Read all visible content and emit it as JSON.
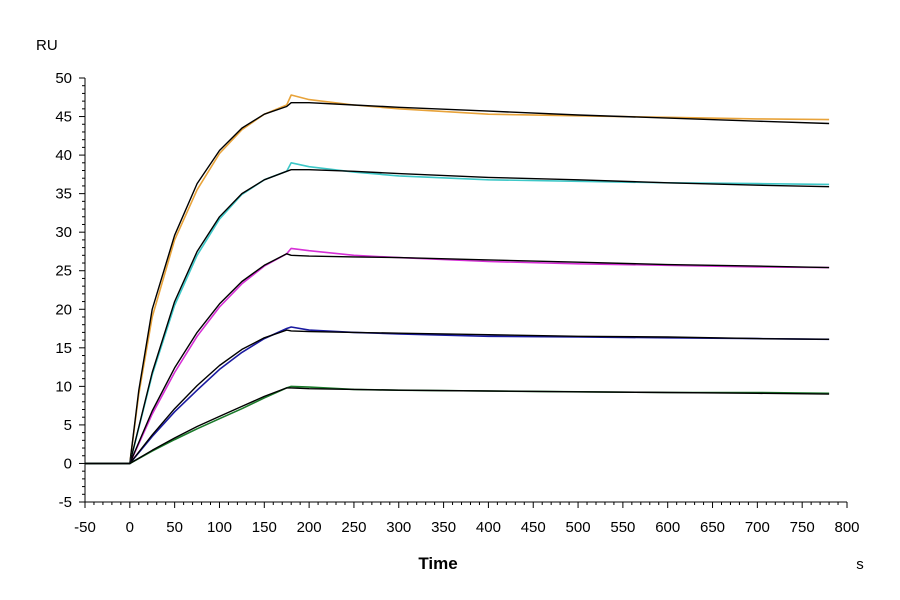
{
  "chart_data": {
    "type": "line",
    "title": "",
    "ylabel": "RU",
    "xlabel": "Time",
    "x_unit": "s",
    "xlim": [
      -50,
      800
    ],
    "ylim": [
      -5,
      50
    ],
    "x_ticks": [
      -50,
      0,
      50,
      100,
      150,
      200,
      250,
      300,
      350,
      400,
      450,
      500,
      550,
      600,
      650,
      700,
      750,
      800
    ],
    "y_ticks": [
      -5,
      0,
      5,
      10,
      15,
      20,
      25,
      30,
      35,
      40,
      45,
      50
    ],
    "grid": false,
    "legend": "none",
    "series": [
      {
        "color": "#e8a33a",
        "x": [
          -50,
          0,
          10,
          25,
          50,
          75,
          100,
          125,
          150,
          175,
          180,
          200,
          250,
          300,
          400,
          500,
          600,
          700,
          780
        ],
        "values": [
          0,
          0,
          9,
          19,
          29,
          35.5,
          40.2,
          43.3,
          45.3,
          46.5,
          47.8,
          47.2,
          46.5,
          46.0,
          45.3,
          45.1,
          44.9,
          44.7,
          44.6
        ]
      },
      {
        "color": "#000000",
        "x": [
          -50,
          0,
          10,
          25,
          50,
          75,
          100,
          125,
          150,
          175,
          180,
          200,
          250,
          300,
          400,
          500,
          600,
          700,
          780
        ],
        "values": [
          0,
          0,
          9.5,
          20,
          29.6,
          36.3,
          40.6,
          43.5,
          45.3,
          46.3,
          46.8,
          46.8,
          46.5,
          46.2,
          45.7,
          45.2,
          44.8,
          44.4,
          44.1
        ]
      },
      {
        "color": "#3ec8c8",
        "x": [
          -50,
          0,
          25,
          50,
          75,
          100,
          125,
          150,
          175,
          180,
          200,
          250,
          300,
          400,
          500,
          600,
          700,
          780
        ],
        "values": [
          0,
          0,
          11.5,
          20.5,
          27,
          31.7,
          34.9,
          36.8,
          37.9,
          39,
          38.5,
          37.8,
          37.3,
          36.8,
          36.6,
          36.4,
          36.3,
          36.2
        ]
      },
      {
        "color": "#000000",
        "x": [
          -50,
          0,
          25,
          50,
          75,
          100,
          125,
          150,
          175,
          180,
          200,
          250,
          300,
          400,
          500,
          600,
          700,
          780
        ],
        "values": [
          0,
          0,
          11.8,
          21,
          27.5,
          32,
          35,
          36.8,
          37.9,
          38.1,
          38.1,
          37.9,
          37.6,
          37.1,
          36.8,
          36.4,
          36.1,
          35.9
        ]
      },
      {
        "color": "#d630d6",
        "x": [
          -50,
          0,
          25,
          50,
          75,
          100,
          125,
          150,
          175,
          180,
          200,
          250,
          300,
          400,
          500,
          600,
          700,
          780
        ],
        "values": [
          0,
          0,
          6.4,
          11.8,
          16.5,
          20.3,
          23.3,
          25.6,
          27.2,
          27.9,
          27.6,
          27.0,
          26.7,
          26.2,
          25.9,
          25.7,
          25.5,
          25.4
        ]
      },
      {
        "color": "#000000",
        "x": [
          -50,
          0,
          25,
          50,
          75,
          100,
          125,
          150,
          175,
          180,
          200,
          250,
          300,
          400,
          500,
          600,
          700,
          780
        ],
        "values": [
          0,
          0,
          6.8,
          12.4,
          17,
          20.7,
          23.6,
          25.7,
          27.2,
          27,
          26.9,
          26.8,
          26.7,
          26.4,
          26.1,
          25.8,
          25.6,
          25.4
        ]
      },
      {
        "color": "#1a1aa0",
        "x": [
          -50,
          0,
          25,
          50,
          75,
          100,
          125,
          150,
          175,
          180,
          200,
          250,
          300,
          400,
          500,
          600,
          700,
          780
        ],
        "values": [
          0,
          0,
          3.5,
          6.7,
          9.5,
          12.2,
          14.4,
          16.2,
          17.5,
          17.7,
          17.3,
          17.0,
          16.8,
          16.5,
          16.4,
          16.3,
          16.2,
          16.1
        ]
      },
      {
        "color": "#000000",
        "x": [
          -50,
          0,
          25,
          50,
          75,
          100,
          125,
          150,
          175,
          180,
          200,
          250,
          300,
          400,
          500,
          600,
          700,
          780
        ],
        "values": [
          0,
          0,
          3.7,
          7.1,
          10.1,
          12.7,
          14.8,
          16.3,
          17.3,
          17.2,
          17.1,
          17.0,
          16.9,
          16.7,
          16.5,
          16.4,
          16.2,
          16.1
        ]
      },
      {
        "color": "#1a7a2a",
        "x": [
          -50,
          0,
          25,
          50,
          75,
          100,
          125,
          150,
          175,
          180,
          200,
          250,
          300,
          400,
          500,
          600,
          700,
          780
        ],
        "values": [
          0,
          0,
          1.6,
          3.1,
          4.5,
          5.8,
          7.1,
          8.5,
          9.8,
          10.0,
          9.9,
          9.6,
          9.5,
          9.4,
          9.3,
          9.2,
          9.2,
          9.1
        ]
      },
      {
        "color": "#000000",
        "x": [
          -50,
          0,
          25,
          50,
          75,
          100,
          125,
          150,
          175,
          180,
          200,
          250,
          300,
          400,
          500,
          600,
          700,
          780
        ],
        "values": [
          0,
          0,
          1.7,
          3.3,
          4.8,
          6.1,
          7.4,
          8.7,
          9.8,
          9.8,
          9.7,
          9.6,
          9.5,
          9.4,
          9.3,
          9.2,
          9.1,
          9.0
        ]
      }
    ]
  }
}
